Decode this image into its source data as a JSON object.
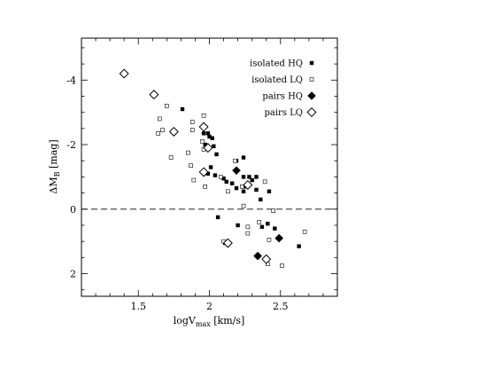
{
  "chart_data": {
    "type": "scatter",
    "xlabel_main": "logV",
    "xlabel_sub": "max",
    "xlabel_units": " [km/s]",
    "ylabel_main": "ΔM",
    "ylabel_sub": "B",
    "ylabel_units": " [mag]",
    "xlim": [
      1.1,
      2.9
    ],
    "ylim": [
      2.7,
      -5.3
    ],
    "x_ticks": [
      {
        "value": 1.5,
        "label": "1.5"
      },
      {
        "value": 2.0,
        "label": "2"
      },
      {
        "value": 2.5,
        "label": "2.5"
      }
    ],
    "y_ticks": [
      {
        "value": -4,
        "label": "-4"
      },
      {
        "value": -2,
        "label": "-2"
      },
      {
        "value": 0,
        "label": "0"
      },
      {
        "value": 2,
        "label": "2"
      }
    ],
    "reference_line_y": 0,
    "legend_position": "top-right",
    "series": [
      {
        "name": "isolated HQ",
        "marker": "filled-square",
        "points": [
          [
            1.81,
            -3.1
          ],
          [
            1.96,
            -2.35
          ],
          [
            1.99,
            -2.35
          ],
          [
            2.0,
            -2.25
          ],
          [
            2.02,
            -2.2
          ],
          [
            1.97,
            -2.0
          ],
          [
            1.98,
            -1.9
          ],
          [
            2.03,
            -1.95
          ],
          [
            2.05,
            -1.7
          ],
          [
            2.01,
            -1.3
          ],
          [
            1.99,
            -1.1
          ],
          [
            2.04,
            -1.05
          ],
          [
            2.1,
            -0.95
          ],
          [
            2.12,
            -0.85
          ],
          [
            2.16,
            -0.8
          ],
          [
            2.19,
            -1.5
          ],
          [
            2.24,
            -1.6
          ],
          [
            2.24,
            -1.0
          ],
          [
            2.28,
            -1.0
          ],
          [
            2.3,
            -0.9
          ],
          [
            2.33,
            -1.0
          ],
          [
            2.24,
            -0.55
          ],
          [
            2.25,
            -0.7
          ],
          [
            2.19,
            -0.65
          ],
          [
            2.33,
            -0.6
          ],
          [
            2.42,
            -0.55
          ],
          [
            2.36,
            -0.3
          ],
          [
            2.37,
            0.55
          ],
          [
            2.41,
            0.45
          ],
          [
            2.46,
            0.6
          ],
          [
            2.06,
            0.25
          ],
          [
            2.2,
            0.5
          ],
          [
            2.11,
            1.05
          ],
          [
            2.63,
            1.15
          ]
        ]
      },
      {
        "name": "isolated LQ",
        "marker": "open-square",
        "points": [
          [
            1.7,
            -3.2
          ],
          [
            1.65,
            -2.8
          ],
          [
            1.64,
            -2.35
          ],
          [
            1.67,
            -2.45
          ],
          [
            1.88,
            -2.7
          ],
          [
            1.88,
            -2.45
          ],
          [
            1.96,
            -2.9
          ],
          [
            1.95,
            -2.1
          ],
          [
            1.96,
            -1.85
          ],
          [
            1.73,
            -1.6
          ],
          [
            1.85,
            -1.75
          ],
          [
            1.87,
            -1.35
          ],
          [
            1.89,
            -0.9
          ],
          [
            1.97,
            -0.7
          ],
          [
            2.08,
            -1.0
          ],
          [
            2.18,
            -1.5
          ],
          [
            2.13,
            -0.55
          ],
          [
            2.23,
            -0.7
          ],
          [
            2.39,
            -0.85
          ],
          [
            2.24,
            -0.1
          ],
          [
            2.45,
            0.05
          ],
          [
            2.35,
            0.4
          ],
          [
            2.27,
            0.55
          ],
          [
            2.27,
            0.75
          ],
          [
            2.42,
            0.95
          ],
          [
            2.67,
            0.7
          ],
          [
            2.1,
            1.0
          ],
          [
            2.41,
            1.7
          ],
          [
            2.51,
            1.75
          ]
        ]
      },
      {
        "name": "pairs HQ",
        "marker": "filled-diamond",
        "points": [
          [
            2.19,
            -1.2
          ],
          [
            2.27,
            -0.75
          ],
          [
            2.49,
            0.9
          ],
          [
            2.34,
            1.45
          ]
        ]
      },
      {
        "name": "pairs LQ",
        "marker": "open-diamond",
        "points": [
          [
            1.4,
            -4.2
          ],
          [
            1.61,
            -3.55
          ],
          [
            1.75,
            -2.4
          ],
          [
            1.96,
            -2.55
          ],
          [
            1.99,
            -1.9
          ],
          [
            1.96,
            -1.15
          ],
          [
            2.27,
            -0.75
          ],
          [
            2.13,
            1.05
          ],
          [
            2.4,
            1.55
          ]
        ]
      }
    ]
  }
}
